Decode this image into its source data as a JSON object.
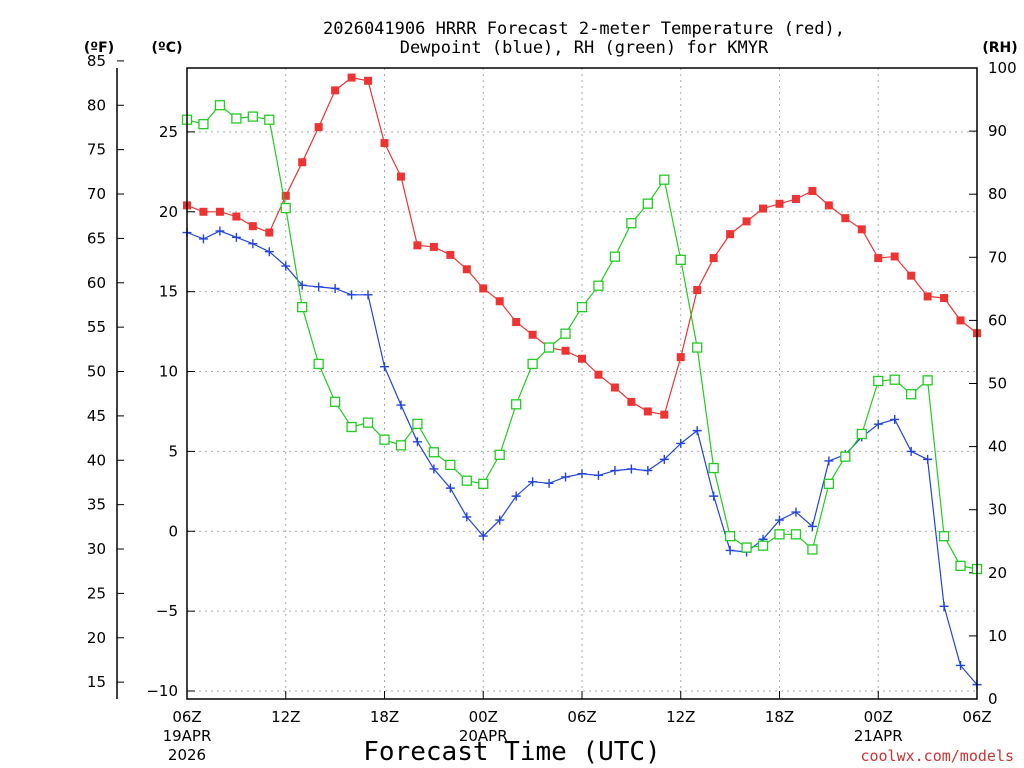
{
  "chart_data": {
    "type": "line",
    "title_line1": "2026041906 HRRR Forecast 2-meter Temperature (red),",
    "title_line2": "Dewpoint (blue), RH (green) for KMYR",
    "xlabel": "Forecast Time (UTC)",
    "credit": "coolwx.com/models",
    "units": {
      "fahrenheit": "(ºF)",
      "celsius": "(ºC)",
      "rh": "(RH)"
    },
    "x_range_hours": [
      0,
      48
    ],
    "celsius_range": [
      -10.5,
      29
    ],
    "rh_range": [
      0,
      100
    ],
    "x_ticks": [
      {
        "hour": 0,
        "label": "06Z",
        "sub1": "19APR",
        "sub2": "2026"
      },
      {
        "hour": 6,
        "label": "12Z"
      },
      {
        "hour": 12,
        "label": "18Z"
      },
      {
        "hour": 18,
        "label": "00Z",
        "sub1": "20APR"
      },
      {
        "hour": 24,
        "label": "06Z"
      },
      {
        "hour": 30,
        "label": "12Z"
      },
      {
        "hour": 36,
        "label": "18Z"
      },
      {
        "hour": 42,
        "label": "00Z",
        "sub1": "21APR"
      },
      {
        "hour": 48,
        "label": "06Z"
      }
    ],
    "celsius_ticks": [
      {
        "value": 25,
        "label": "25"
      },
      {
        "value": 20,
        "label": "20"
      },
      {
        "value": 15,
        "label": "15"
      },
      {
        "value": 10,
        "label": "10"
      },
      {
        "value": 5,
        "label": "5"
      },
      {
        "value": 0,
        "label": "0"
      },
      {
        "value": -5,
        "label": "−5"
      },
      {
        "value": -10,
        "label": "−10"
      }
    ],
    "fahrenheit_ticks": [
      {
        "value": 85,
        "label": "85"
      },
      {
        "value": 80,
        "label": "80"
      },
      {
        "value": 75,
        "label": "75"
      },
      {
        "value": 70,
        "label": "70"
      },
      {
        "value": 65,
        "label": "65"
      },
      {
        "value": 60,
        "label": "60"
      },
      {
        "value": 55,
        "label": "55"
      },
      {
        "value": 50,
        "label": "50"
      },
      {
        "value": 45,
        "label": "45"
      },
      {
        "value": 40,
        "label": "40"
      },
      {
        "value": 35,
        "label": "35"
      },
      {
        "value": 30,
        "label": "30"
      },
      {
        "value": 25,
        "label": "25"
      },
      {
        "value": 20,
        "label": "20"
      },
      {
        "value": 15,
        "label": "15"
      }
    ],
    "rh_ticks": [
      {
        "value": 100,
        "label": "100"
      },
      {
        "value": 90,
        "label": "90"
      },
      {
        "value": 80,
        "label": "80"
      },
      {
        "value": 70,
        "label": "70"
      },
      {
        "value": 60,
        "label": "60"
      },
      {
        "value": 50,
        "label": "50"
      },
      {
        "value": 40,
        "label": "40"
      },
      {
        "value": 30,
        "label": "30"
      },
      {
        "value": 20,
        "label": "20"
      },
      {
        "value": 10,
        "label": "10"
      },
      {
        "value": 0,
        "label": "0"
      }
    ],
    "series": [
      {
        "name": "Temperature",
        "unit": "C",
        "color": "#ee3333",
        "marker": "filled-square",
        "values": [
          20.4,
          20.0,
          20.0,
          19.7,
          19.1,
          18.7,
          21.0,
          23.1,
          25.3,
          27.6,
          28.4,
          28.2,
          24.3,
          22.2,
          17.9,
          17.8,
          17.3,
          16.4,
          15.2,
          14.4,
          13.1,
          12.3,
          11.5,
          11.3,
          10.8,
          9.8,
          9.0,
          8.1,
          7.5,
          7.3,
          10.9,
          15.1,
          17.1,
          18.6,
          19.4,
          20.2,
          20.5,
          20.8,
          21.3,
          20.4,
          19.6,
          18.9,
          17.1,
          17.2,
          16.0,
          14.7,
          14.6,
          13.2,
          12.4
        ]
      },
      {
        "name": "Dewpoint",
        "unit": "C",
        "color": "#2244dd",
        "marker": "plus",
        "values": [
          18.7,
          18.3,
          18.8,
          18.4,
          18.0,
          17.5,
          16.6,
          15.4,
          15.3,
          15.2,
          14.8,
          14.8,
          10.3,
          7.9,
          5.6,
          3.9,
          2.7,
          0.9,
          -0.3,
          0.7,
          2.2,
          3.1,
          3.0,
          3.4,
          3.6,
          3.5,
          3.8,
          3.9,
          3.8,
          4.5,
          5.5,
          6.3,
          2.2,
          -1.2,
          -1.3,
          -0.5,
          0.7,
          1.2,
          0.3,
          4.4,
          4.8,
          5.9,
          6.7,
          7.0,
          5.0,
          4.5,
          -4.7,
          -8.4,
          -9.6
        ]
      },
      {
        "name": "RH",
        "unit": "%",
        "color": "#22cc22",
        "marker": "open-square",
        "values": [
          91.8,
          91.1,
          94.1,
          92.0,
          92.3,
          91.8,
          77.8,
          62.1,
          53.1,
          47.1,
          43.1,
          43.8,
          41.1,
          40.2,
          43.6,
          39.1,
          37.1,
          34.6,
          34.1,
          38.7,
          46.7,
          53.1,
          55.7,
          57.9,
          62.1,
          65.5,
          70.1,
          75.4,
          78.5,
          82.3,
          69.6,
          55.7,
          36.6,
          25.8,
          24.0,
          24.3,
          26.1,
          26.1,
          23.7,
          34.1,
          38.4,
          42.0,
          50.4,
          50.6,
          48.3,
          50.5,
          25.8,
          21.1,
          20.6
        ]
      }
    ]
  }
}
